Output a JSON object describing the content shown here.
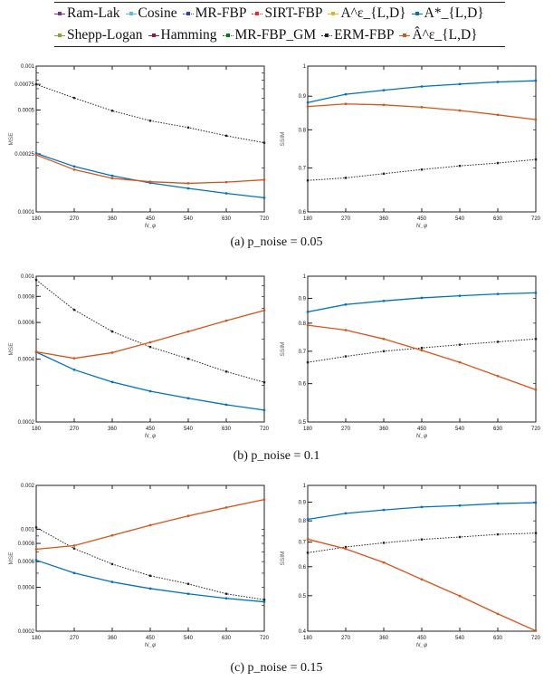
{
  "legend": {
    "items": [
      {
        "label": "Ram-Lak",
        "color": "#7e2f8e",
        "style": "solid"
      },
      {
        "label": "Cosine",
        "color": "#4dbeee",
        "style": "solid"
      },
      {
        "label": "MR-FBP",
        "color": "#3030ff",
        "style": "dotted"
      },
      {
        "label": "SIRT-FBP",
        "color": "#ff2020",
        "style": "dotted"
      },
      {
        "label": "A^ε_{L,D}",
        "color": "#edb120",
        "style": "solid"
      },
      {
        "label": "A*_{L,D}",
        "color": "#0072bd",
        "style": "solid"
      },
      {
        "label": "Shepp-Logan",
        "color": "#77ac30",
        "style": "solid"
      },
      {
        "label": "Hamming",
        "color": "#a2142f",
        "style": "solid"
      },
      {
        "label": "MR-FBP_GM",
        "color": "#008000",
        "style": "dotted"
      },
      {
        "label": "ERM-FBP",
        "color": "#222222",
        "style": "dotted"
      },
      {
        "label": "Â^ε_{L,D}",
        "color": "#d95319",
        "style": "solid"
      }
    ]
  },
  "captions": [
    "(a) p_noise = 0.05",
    "(b) p_noise = 0.1",
    "(c) p_noise = 0.15"
  ],
  "chart_data": [
    {
      "type": "line",
      "panel": "a-mse",
      "xlabel": "N_φ",
      "ylabel": "MSE",
      "yscale": "log",
      "ylim": [
        0.0001,
        0.001
      ],
      "x": [
        180,
        270,
        360,
        450,
        540,
        630,
        720
      ],
      "xticks": [
        "180",
        "270",
        "360",
        "450",
        "540",
        "630",
        "720"
      ],
      "yticks": [
        0.0001,
        0.00025,
        0.0005,
        0.00075,
        0.001
      ],
      "yticklabels": [
        "0.0001",
        "0.00025",
        "0.0005",
        "0.00075",
        "0.001"
      ],
      "series": [
        {
          "name": "ERM-FBP",
          "color": "#222222",
          "style": "dotted",
          "values": [
            0.00075,
            0.000605,
            0.000494,
            0.000422,
            0.000379,
            0.000333,
            0.000298
          ]
        },
        {
          "name": "A*_{L,D}",
          "color": "#0072bd",
          "style": "solid",
          "values": [
            0.000252,
            0.000205,
            0.000177,
            0.000158,
            0.000145,
            0.000134,
            0.000125
          ]
        },
        {
          "name": "Â^ε_{L,D}",
          "color": "#d95319",
          "style": "solid",
          "values": [
            0.000246,
            0.000195,
            0.00017,
            0.000161,
            0.000157,
            0.00016,
            0.000166
          ]
        }
      ]
    },
    {
      "type": "line",
      "panel": "a-ssim",
      "xlabel": "N_φ",
      "ylabel": "SSIM",
      "yscale": "log",
      "ylim": [
        0.6,
        1
      ],
      "x": [
        180,
        270,
        360,
        450,
        540,
        630,
        720
      ],
      "xticks": [
        "180",
        "270",
        "360",
        "450",
        "540",
        "630",
        "720"
      ],
      "yticks": [
        0.6,
        0.7,
        0.8,
        0.9,
        1
      ],
      "yticklabels": [
        "0.6",
        "0.7",
        "0.8",
        "0.9",
        "1"
      ],
      "series": [
        {
          "name": "ERM-FBP",
          "color": "#222222",
          "style": "dotted",
          "values": [
            0.67,
            0.676,
            0.686,
            0.696,
            0.705,
            0.712,
            0.721
          ]
        },
        {
          "name": "A*_{L,D}",
          "color": "#0072bd",
          "style": "solid",
          "values": [
            0.88,
            0.906,
            0.919,
            0.931,
            0.939,
            0.946,
            0.95
          ]
        },
        {
          "name": "Â^ε_{L,D}",
          "color": "#d95319",
          "style": "solid",
          "values": [
            0.868,
            0.876,
            0.873,
            0.866,
            0.856,
            0.843,
            0.829
          ]
        }
      ]
    },
    {
      "type": "line",
      "panel": "b-mse",
      "xlabel": "N_φ",
      "ylabel": "MSE",
      "yscale": "log",
      "ylim": [
        0.0002,
        0.001
      ],
      "x": [
        180,
        270,
        360,
        450,
        540,
        630,
        720
      ],
      "xticks": [
        "180",
        "270",
        "360",
        "450",
        "540",
        "630",
        "720"
      ],
      "yticks": [
        0.0002,
        0.0004,
        0.0006,
        0.0008,
        0.001
      ],
      "yticklabels": [
        "0.0002",
        "0.0004",
        "0.0006",
        "0.0008",
        "0.001"
      ],
      "series": [
        {
          "name": "ERM-FBP",
          "color": "#222222",
          "style": "dotted",
          "values": [
            0.00096,
            0.00069,
            0.000543,
            0.000458,
            0.000402,
            0.000349,
            0.00031
          ]
        },
        {
          "name": "A*_{L,D}",
          "color": "#0072bd",
          "style": "solid",
          "values": [
            0.000433,
            0.000356,
            0.000311,
            0.000281,
            0.00026,
            0.000242,
            0.000228
          ]
        },
        {
          "name": "Â^ε_{L,D}",
          "color": "#d95319",
          "style": "solid",
          "values": [
            0.000434,
            0.000404,
            0.00043,
            0.000482,
            0.000543,
            0.000612,
            0.000686
          ]
        }
      ]
    },
    {
      "type": "line",
      "panel": "b-ssim",
      "xlabel": "N_φ",
      "ylabel": "SSIM",
      "yscale": "log",
      "ylim": [
        0.5,
        1
      ],
      "x": [
        180,
        270,
        360,
        450,
        540,
        630,
        720
      ],
      "xticks": [
        "180",
        "270",
        "360",
        "450",
        "540",
        "630",
        "720"
      ],
      "yticks": [
        0.5,
        0.6,
        0.7,
        0.8,
        0.9,
        1
      ],
      "yticklabels": [
        "0.5",
        "0.6",
        "0.7",
        "0.8",
        "0.9",
        "1"
      ],
      "series": [
        {
          "name": "ERM-FBP",
          "color": "#222222",
          "style": "dotted",
          "values": [
            0.664,
            0.683,
            0.7,
            0.711,
            0.722,
            0.732,
            0.742
          ]
        },
        {
          "name": "A*_{L,D}",
          "color": "#0072bd",
          "style": "solid",
          "values": [
            0.844,
            0.874,
            0.889,
            0.902,
            0.911,
            0.919,
            0.924
          ]
        },
        {
          "name": "Â^ε_{L,D}",
          "color": "#d95319",
          "style": "solid",
          "values": [
            0.792,
            0.774,
            0.742,
            0.703,
            0.664,
            0.622,
            0.583
          ]
        }
      ]
    },
    {
      "type": "line",
      "panel": "c-mse",
      "xlabel": "N_φ",
      "ylabel": "MSE",
      "yscale": "log",
      "ylim": [
        0.0002,
        0.002
      ],
      "x": [
        180,
        270,
        360,
        450,
        540,
        630,
        720
      ],
      "xticks": [
        "180",
        "270",
        "360",
        "450",
        "540",
        "630",
        "720"
      ],
      "yticks": [
        0.0002,
        0.0004,
        0.0006,
        0.0008,
        0.001,
        0.002
      ],
      "yticklabels": [
        "0.0002",
        "0.0004",
        "0.0006",
        "0.0008",
        "0.001",
        "0.002"
      ],
      "series": [
        {
          "name": "ERM-FBP",
          "color": "#222222",
          "style": "dotted",
          "values": [
            0.00103,
            0.000738,
            0.000577,
            0.00048,
            0.000422,
            0.000361,
            0.000329
          ]
        },
        {
          "name": "A*_{L,D}",
          "color": "#0072bd",
          "style": "solid",
          "values": [
            0.000614,
            0.000501,
            0.000435,
            0.000392,
            0.000361,
            0.000336,
            0.000318
          ]
        },
        {
          "name": "Â^ε_{L,D}",
          "color": "#d95319",
          "style": "solid",
          "values": [
            0.00073,
            0.000773,
            0.000908,
            0.001066,
            0.001235,
            0.00141,
            0.0016
          ]
        }
      ]
    },
    {
      "type": "line",
      "panel": "c-ssim",
      "xlabel": "N_φ",
      "ylabel": "SSIM",
      "yscale": "log",
      "ylim": [
        0.4,
        1
      ],
      "x": [
        180,
        270,
        360,
        450,
        540,
        630,
        720
      ],
      "xticks": [
        "180",
        "270",
        "360",
        "450",
        "540",
        "630",
        "720"
      ],
      "yticks": [
        0.4,
        0.5,
        0.6,
        0.7,
        0.8,
        0.9,
        1
      ],
      "yticklabels": [
        "0.4",
        "0.5",
        "0.6",
        "0.7",
        "0.8",
        "0.9",
        "1"
      ],
      "series": [
        {
          "name": "ERM-FBP",
          "color": "#222222",
          "style": "dotted",
          "values": [
            0.655,
            0.679,
            0.697,
            0.712,
            0.723,
            0.735,
            0.741
          ]
        },
        {
          "name": "A*_{L,D}",
          "color": "#0072bd",
          "style": "solid",
          "values": [
            0.808,
            0.839,
            0.857,
            0.873,
            0.881,
            0.892,
            0.897
          ]
        },
        {
          "name": "Â^ε_{L,D}",
          "color": "#d95319",
          "style": "solid",
          "values": [
            0.713,
            0.671,
            0.616,
            0.554,
            0.499,
            0.446,
            0.401
          ]
        }
      ]
    }
  ]
}
